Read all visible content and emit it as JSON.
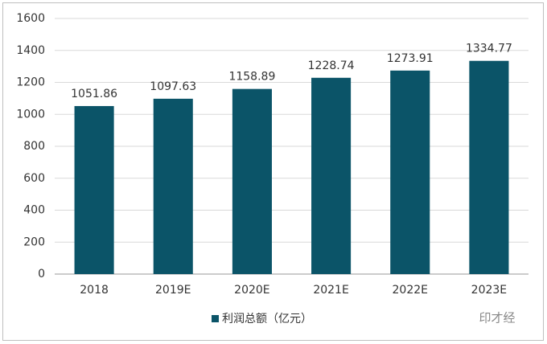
{
  "chart_data": {
    "type": "bar",
    "categories": [
      "2018",
      "2019E",
      "2020E",
      "2021E",
      "2022E",
      "2023E"
    ],
    "series": [
      {
        "name": "利润总额（亿元）",
        "color": "#0b5468",
        "values": [
          1051.86,
          1097.63,
          1158.89,
          1228.74,
          1273.91,
          1334.77
        ]
      }
    ],
    "ylim": [
      0,
      1600
    ],
    "yticks": [
      0,
      200,
      400,
      600,
      800,
      1000,
      1200,
      1400,
      1600
    ],
    "grid": true,
    "legend": "bottom",
    "watermark": "印才经"
  }
}
